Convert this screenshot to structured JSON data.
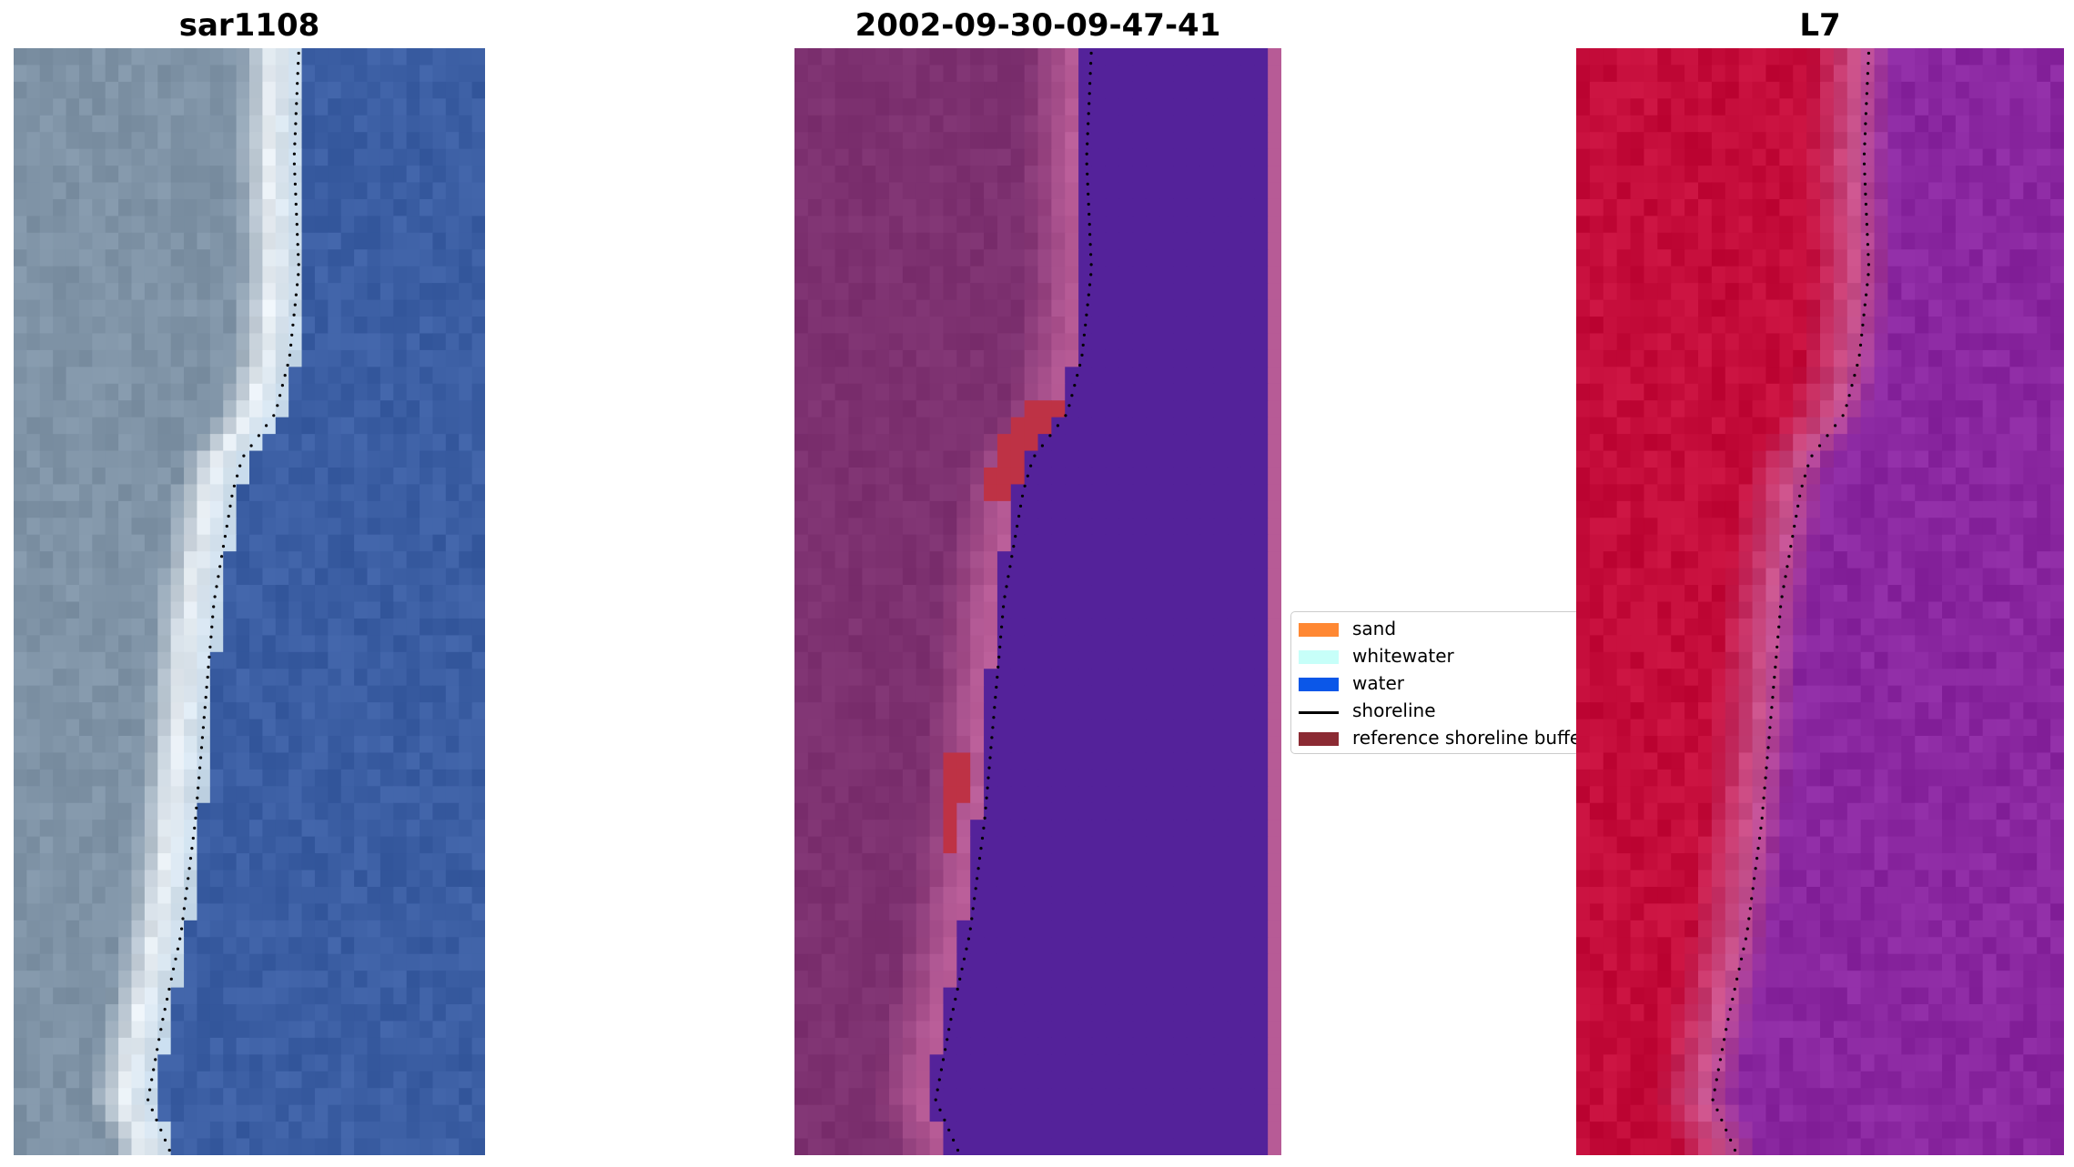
{
  "panels": [
    {
      "title": "sar1108"
    },
    {
      "title": "2002-09-30-09-47-41"
    },
    {
      "title": "L7"
    }
  ],
  "legend": {
    "items": [
      {
        "label": "sand",
        "color": "#ff8833",
        "kind": "patch"
      },
      {
        "label": "whitewater",
        "color": "#c7fff9",
        "kind": "patch"
      },
      {
        "label": "water",
        "color": "#0b57e8",
        "kind": "patch"
      },
      {
        "label": "shoreline",
        "color": "#000000",
        "kind": "line"
      },
      {
        "label": "reference shoreline buffer",
        "color": "#8b2a33",
        "kind": "patch"
      }
    ]
  },
  "colors": {
    "rgb_land": "#7f93a6",
    "rgb_surf": "#e8eef3",
    "rgb_water": "#3b5ea3",
    "class_land": "#7d3170",
    "class_sand_overlay": "#b75b96",
    "class_water": "#54229a",
    "class_buffer": "#be3245",
    "ndwi_land": "#c40c3a",
    "ndwi_transition": "#c9548e",
    "ndwi_water": "#8a27a0",
    "shoreline_dots": "#000000"
  }
}
